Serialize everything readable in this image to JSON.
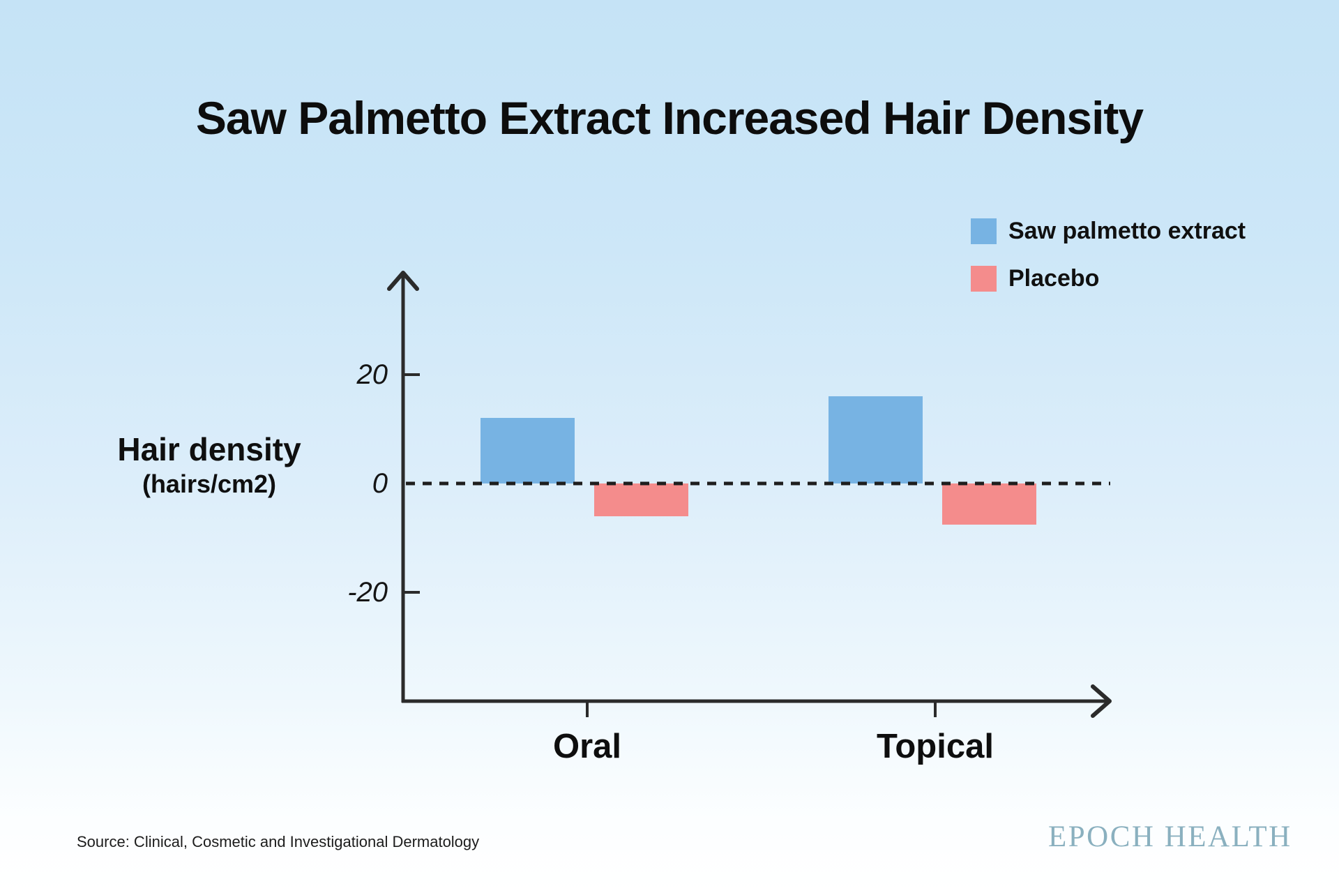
{
  "page": {
    "title": "Saw Palmetto Extract Increased Hair Density",
    "source": "Source: Clinical, Cosmetic and Investigational Dermatology",
    "brand": "EPOCH HEALTH"
  },
  "colors": {
    "saw_palmetto_blue": "#77B3E3",
    "placebo_pink": "#F48C8C",
    "background_top": "#C5E3F6",
    "background_bottom": "#FFFFFF",
    "axis_ink": "#2B2B2B",
    "brand_teal": "#8AB0BF"
  },
  "legend": {
    "items": [
      {
        "label": "Saw palmetto extract",
        "color": "#77B3E3"
      },
      {
        "label": "Placebo",
        "color": "#F48C8C"
      }
    ]
  },
  "y_axis": {
    "label_line1": "Hair density",
    "label_line2": "(hairs/cm2)",
    "ticks": [
      "20",
      "0",
      "-20"
    ]
  },
  "chart_data": {
    "type": "bar",
    "title": "Saw Palmetto Extract Increased Hair Density",
    "categories": [
      "Oral",
      "Topical"
    ],
    "series": [
      {
        "name": "Saw palmetto extract",
        "color": "#77B3E3",
        "values": [
          12,
          16
        ]
      },
      {
        "name": "Placebo",
        "color": "#F48C8C",
        "values": [
          -6,
          -7.5
        ]
      }
    ],
    "ylabel": "Hair density (hairs/cm2)",
    "y_ticks": [
      20,
      0,
      -20
    ],
    "ylim": [
      -35,
      40
    ],
    "zero_line": "dotted",
    "legend_position": "top-right",
    "grid": false
  }
}
